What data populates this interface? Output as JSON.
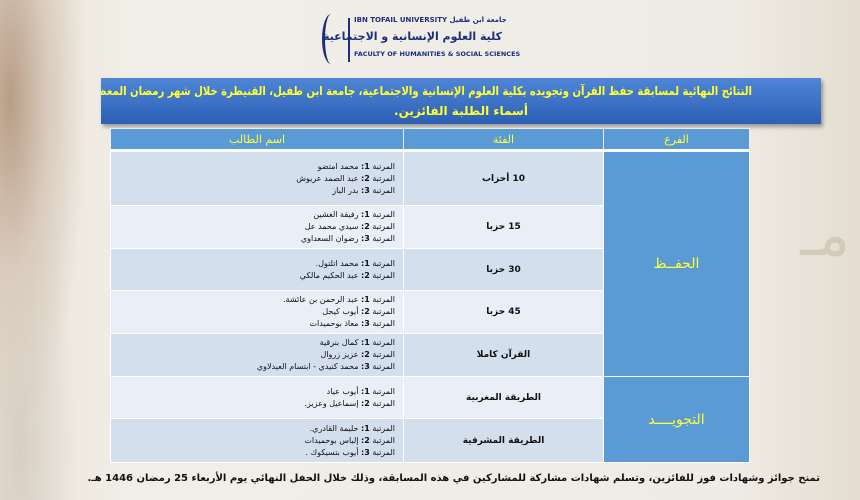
{
  "logo": {
    "line1": "IBN TOFAIL UNIVERSITY جامعة ابن طفيل",
    "line2": "كلية العلوم الإنسانية و الاجتماعية",
    "line3": "FACULTY OF HUMANITIES & SOCIAL SCIENCES"
  },
  "banner": {
    "line1": "النتائج النهائية لمسابقة حفظ القرآن وتجويده بكلية العلوم الإنسانية والاجتماعية، جامعة ابن طفيل، القنيطرة خلال شهر رمضان المعظم 1446 هـ.",
    "line2": "أسماء الطلبة الفائزين."
  },
  "table": {
    "headers": {
      "branch": "الفرع",
      "category": "الفئة",
      "names": "اسم الطالب"
    },
    "branches": [
      "الحفــظ",
      "التجويــــد"
    ],
    "rank_label": "المرتبة",
    "rows": [
      {
        "category": "10 أحزاب",
        "winners": [
          {
            "rank": "1:",
            "name": "محمد امتضو"
          },
          {
            "rank": "2:",
            "name": "عبد الصمد عريوش"
          },
          {
            "rank": "3:",
            "name": "بدر الباز"
          }
        ]
      },
      {
        "category": "15 حزبا",
        "winners": [
          {
            "rank": "1:",
            "name": "رفيقة الغشين"
          },
          {
            "rank": "2:",
            "name": "سيدي محمد عل"
          },
          {
            "rank": "3:",
            "name": "رضوان السعداوي"
          }
        ]
      },
      {
        "category": "30 حزبا",
        "winners": [
          {
            "rank": "1:",
            "name": "محمد اتلتول."
          },
          {
            "rank": "2:",
            "name": "عبد الحكيم مالكي"
          }
        ]
      },
      {
        "category": "45 حزبا",
        "winners": [
          {
            "rank": "1:",
            "name": "عبد الرحمن بن عائشة."
          },
          {
            "rank": "2:",
            "name": "أيوب كيحل"
          },
          {
            "rank": "3:",
            "name": "معاذ بوحميدات"
          }
        ]
      },
      {
        "category": "القرآن كاملا",
        "winners": [
          {
            "rank": "1:",
            "name": "كمال بنرقية"
          },
          {
            "rank": "2:",
            "name": "عزيز زروال"
          },
          {
            "rank": "3:",
            "name": "محمد كنيدي - ابتسام العيدلاوي"
          }
        ]
      },
      {
        "category": "الطريقة المغربية",
        "winners": [
          {
            "rank": "1:",
            "name": "أيوب عياد"
          },
          {
            "rank": "2:",
            "name": "إسماعيل وعزيز."
          }
        ]
      },
      {
        "category": "الطريقة المشرقية",
        "winners": [
          {
            "rank": "1:",
            "name": "حليمة القادري."
          },
          {
            "rank": "2:",
            "name": "إلياس بوحميدات"
          },
          {
            "rank": "3:",
            "name": "أيوب بتسيكوك ."
          }
        ]
      }
    ]
  },
  "footer": "تمنح جوائز وشهادات فوز للفائزين، وتسلم شهادات مشاركة للمشاركين في هذه المسابقة، وذلك خلال الحفل النهائي يوم الأربعاء 25 رمضان 1446 هـ.",
  "colors": {
    "banner": "#2c5fb5",
    "header_text": "#ffff33",
    "branch_cell": "#5b9bd5"
  }
}
